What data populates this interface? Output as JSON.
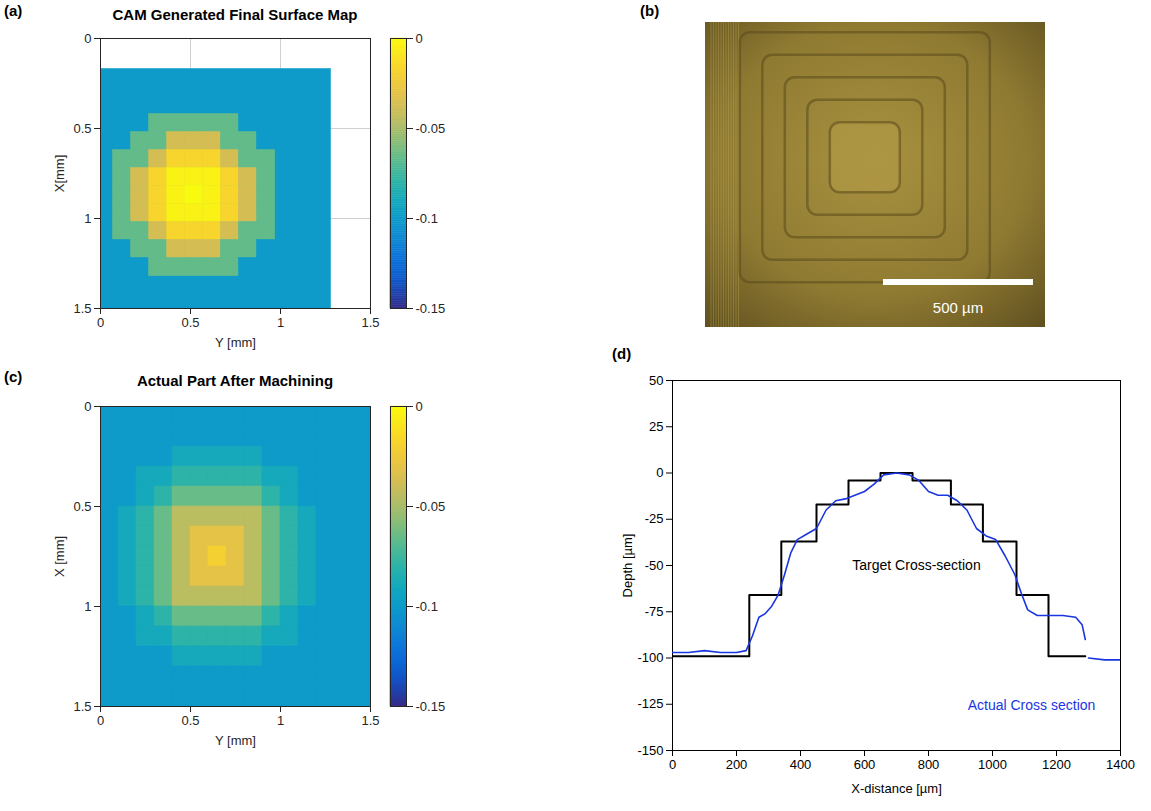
{
  "chart_data": [
    {
      "panel": "(a)",
      "type": "heatmap",
      "title": "CAM Generated Final Surface Map",
      "xlabel": "Y [mm]",
      "ylabel": "X[mm]",
      "xlim": [
        0,
        1.5
      ],
      "xticks": [
        0,
        0.5,
        1,
        1.5
      ],
      "ylim": [
        1.5,
        0
      ],
      "yticks": [
        0,
        0.5,
        1,
        1.5
      ],
      "grid": true,
      "colorbar": {
        "range": [
          -0.15,
          0
        ],
        "ticks": [
          0,
          -0.05,
          -0.1,
          -0.15
        ]
      },
      "cells": {
        "background": {
          "value": -0.1,
          "row_range": [
            0.17,
            1.5
          ],
          "col_range": [
            0,
            1.28
          ]
        },
        "row_edges": [
          0.42,
          0.52,
          0.62,
          0.72,
          0.82,
          0.92,
          1.02,
          1.12,
          1.22,
          1.32
        ],
        "col_edges": [
          0.07,
          0.17,
          0.27,
          0.37,
          0.47,
          0.57,
          0.67,
          0.77,
          0.87,
          0.97
        ],
        "values": [
          [
            -0.1,
            -0.1,
            -0.066,
            -0.066,
            -0.066,
            -0.066,
            -0.066,
            -0.1,
            -0.1
          ],
          [
            -0.1,
            -0.066,
            -0.066,
            -0.037,
            -0.037,
            -0.037,
            -0.066,
            -0.066,
            -0.1
          ],
          [
            -0.066,
            -0.066,
            -0.037,
            -0.017,
            -0.017,
            -0.017,
            -0.037,
            -0.066,
            -0.066
          ],
          [
            -0.066,
            -0.037,
            -0.017,
            -0.004,
            -0.004,
            -0.004,
            -0.017,
            -0.037,
            -0.066
          ],
          [
            -0.066,
            -0.037,
            -0.017,
            -0.004,
            0,
            -0.004,
            -0.017,
            -0.037,
            -0.066
          ],
          [
            -0.066,
            -0.037,
            -0.017,
            -0.004,
            -0.004,
            -0.004,
            -0.017,
            -0.037,
            -0.066
          ],
          [
            -0.066,
            -0.066,
            -0.037,
            -0.017,
            -0.017,
            -0.017,
            -0.037,
            -0.066,
            -0.066
          ],
          [
            -0.1,
            -0.066,
            -0.066,
            -0.037,
            -0.037,
            -0.037,
            -0.066,
            -0.066,
            -0.1
          ],
          [
            -0.1,
            -0.1,
            -0.066,
            -0.066,
            -0.066,
            -0.066,
            -0.066,
            -0.1,
            -0.1
          ]
        ]
      }
    },
    {
      "panel": "(b)",
      "type": "image",
      "scale_bar": {
        "label": "500 µm"
      }
    },
    {
      "panel": "(c)",
      "type": "heatmap",
      "title": "Actual Part After Machining",
      "xlabel": "Y [mm]",
      "ylabel": "X [mm]",
      "xlim": [
        0,
        1.5
      ],
      "xticks": [
        0,
        0.5,
        1,
        1.5
      ],
      "ylim": [
        1.5,
        0
      ],
      "yticks": [
        0,
        0.5,
        1,
        1.5
      ],
      "grid": false,
      "colorbar": {
        "range": [
          -0.15,
          0
        ],
        "ticks": [
          0,
          -0.05,
          -0.1,
          -0.15
        ]
      },
      "cells": {
        "row_edges": [
          0,
          0.1,
          0.2,
          0.3,
          0.4,
          0.5,
          0.6,
          0.7,
          0.8,
          0.9,
          1,
          1.1,
          1.2,
          1.3,
          1.4,
          1.5
        ],
        "col_edges": [
          0,
          0.1,
          0.2,
          0.3,
          0.4,
          0.5,
          0.6,
          0.7,
          0.8,
          0.9,
          1,
          1.1,
          1.2,
          1.3,
          1.4,
          1.5
        ],
        "values": [
          [
            -0.1,
            -0.1,
            -0.1,
            -0.1,
            -0.1,
            -0.1,
            -0.1,
            -0.1,
            -0.1,
            -0.1,
            -0.1,
            -0.1,
            -0.1,
            -0.1,
            -0.1
          ],
          [
            -0.1,
            -0.1,
            -0.1,
            -0.1,
            -0.1,
            -0.1,
            -0.1,
            -0.1,
            -0.1,
            -0.1,
            -0.1,
            -0.1,
            -0.1,
            -0.1,
            -0.1
          ],
          [
            -0.1,
            -0.1,
            -0.1,
            -0.1,
            -0.09,
            -0.09,
            -0.09,
            -0.09,
            -0.09,
            -0.1,
            -0.1,
            -0.1,
            -0.1,
            -0.1,
            -0.1
          ],
          [
            -0.1,
            -0.1,
            -0.09,
            -0.09,
            -0.08,
            -0.08,
            -0.08,
            -0.08,
            -0.08,
            -0.09,
            -0.09,
            -0.1,
            -0.1,
            -0.1,
            -0.1
          ],
          [
            -0.1,
            -0.1,
            -0.09,
            -0.08,
            -0.065,
            -0.065,
            -0.065,
            -0.065,
            -0.065,
            -0.08,
            -0.09,
            -0.1,
            -0.1,
            -0.1,
            -0.1
          ],
          [
            -0.1,
            -0.09,
            -0.08,
            -0.065,
            -0.045,
            -0.045,
            -0.045,
            -0.045,
            -0.045,
            -0.065,
            -0.08,
            -0.09,
            -0.1,
            -0.1,
            -0.1
          ],
          [
            -0.1,
            -0.09,
            -0.08,
            -0.065,
            -0.045,
            -0.03,
            -0.03,
            -0.03,
            -0.045,
            -0.065,
            -0.08,
            -0.09,
            -0.1,
            -0.1,
            -0.1
          ],
          [
            -0.1,
            -0.09,
            -0.08,
            -0.065,
            -0.045,
            -0.03,
            -0.02,
            -0.03,
            -0.045,
            -0.065,
            -0.08,
            -0.09,
            -0.1,
            -0.1,
            -0.1
          ],
          [
            -0.1,
            -0.09,
            -0.08,
            -0.065,
            -0.045,
            -0.03,
            -0.03,
            -0.03,
            -0.045,
            -0.065,
            -0.08,
            -0.09,
            -0.1,
            -0.1,
            -0.1
          ],
          [
            -0.1,
            -0.09,
            -0.08,
            -0.065,
            -0.045,
            -0.045,
            -0.045,
            -0.045,
            -0.045,
            -0.065,
            -0.08,
            -0.09,
            -0.1,
            -0.1,
            -0.1
          ],
          [
            -0.1,
            -0.1,
            -0.09,
            -0.08,
            -0.065,
            -0.065,
            -0.065,
            -0.065,
            -0.065,
            -0.08,
            -0.09,
            -0.1,
            -0.1,
            -0.1,
            -0.1
          ],
          [
            -0.1,
            -0.1,
            -0.09,
            -0.09,
            -0.08,
            -0.08,
            -0.08,
            -0.08,
            -0.08,
            -0.09,
            -0.09,
            -0.1,
            -0.1,
            -0.1,
            -0.1
          ],
          [
            -0.1,
            -0.1,
            -0.1,
            -0.1,
            -0.09,
            -0.09,
            -0.09,
            -0.09,
            -0.09,
            -0.1,
            -0.1,
            -0.1,
            -0.1,
            -0.1,
            -0.1
          ],
          [
            -0.1,
            -0.1,
            -0.1,
            -0.1,
            -0.1,
            -0.1,
            -0.1,
            -0.1,
            -0.1,
            -0.1,
            -0.1,
            -0.1,
            -0.1,
            -0.1,
            -0.1
          ],
          [
            -0.1,
            -0.1,
            -0.1,
            -0.1,
            -0.1,
            -0.1,
            -0.1,
            -0.1,
            -0.1,
            -0.1,
            -0.1,
            -0.1,
            -0.1,
            -0.1,
            -0.1
          ]
        ]
      }
    },
    {
      "panel": "(d)",
      "type": "line",
      "xlabel": "X-distance [µm]",
      "ylabel": "Depth [µm]",
      "xlim": [
        0,
        1400
      ],
      "xticks": [
        0,
        200,
        400,
        600,
        800,
        1000,
        1200,
        1400
      ],
      "ylim": [
        -150,
        50
      ],
      "yticks": [
        -150,
        -125,
        -100,
        -75,
        -50,
        -25,
        0,
        25,
        50
      ],
      "grid": false,
      "series": [
        {
          "name": "Target Cross-section",
          "color": "#000000",
          "x": [
            0,
            240,
            240,
            340,
            340,
            450,
            450,
            550,
            550,
            650,
            650,
            750,
            750,
            870,
            870,
            970,
            970,
            1075,
            1075,
            1175,
            1175,
            1290
          ],
          "values": [
            -99,
            -99,
            -66,
            -66,
            -37,
            -37,
            -17,
            -17,
            -4,
            -4,
            0,
            0,
            -4,
            -4,
            -17,
            -17,
            -37,
            -37,
            -66,
            -66,
            -99,
            -99
          ]
        },
        {
          "name": "Actual Cross section",
          "color": "#1a36e0",
          "x": [
            0,
            50,
            100,
            150,
            200,
            230,
            250,
            270,
            290,
            310,
            330,
            350,
            370,
            390,
            420,
            450,
            480,
            510,
            540,
            570,
            600,
            630,
            660,
            700,
            740,
            770,
            800,
            830,
            860,
            890,
            920,
            950,
            980,
            1010,
            1040,
            1070,
            1090,
            1110,
            1140,
            1180,
            1220,
            1260,
            1280,
            1290,
            1295,
            1300,
            1350,
            1400
          ],
          "values": [
            -97,
            -97,
            -96,
            -97,
            -97,
            -96,
            -88,
            -78,
            -76,
            -72,
            -66,
            -55,
            -43,
            -36,
            -33,
            -30,
            -20,
            -15,
            -14,
            -12,
            -10,
            -6,
            -1,
            0,
            -1,
            -4,
            -10,
            -12,
            -12,
            -15,
            -20,
            -30,
            -34,
            -36,
            -45,
            -55,
            -65,
            -74,
            -77,
            -77,
            -77,
            -78,
            -82,
            -90,
            null,
            -100,
            -101,
            -101
          ]
        }
      ]
    }
  ]
}
